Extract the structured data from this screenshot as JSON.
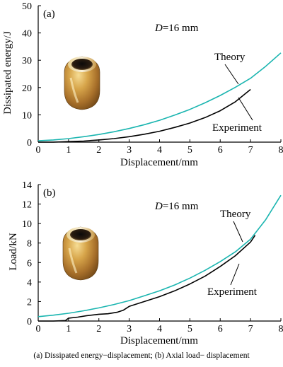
{
  "caption": "(a) Dissipated energy−displacement; (b) Axial load− displacement",
  "colors": {
    "theory": "#1ab5b0",
    "experiment": "#000000",
    "axis": "#000000"
  },
  "chart_data": [
    {
      "type": "line",
      "panel_label": "(a)",
      "annotation_text": "D=16 mm",
      "annotation_var": "D",
      "annotation_rest": "=16 mm",
      "xlabel": "Displacement/mm",
      "ylabel": "Dissipated energy/J",
      "xlim": [
        0,
        8
      ],
      "ylim": [
        0,
        50
      ],
      "xticks": [
        "0",
        "1",
        "2",
        "3",
        "4",
        "5",
        "6",
        "7",
        "8"
      ],
      "yticks": [
        "0",
        "10",
        "20",
        "30",
        "40",
        "50"
      ],
      "series": [
        {
          "name": "Theory",
          "x": [
            0,
            0.5,
            1,
            1.5,
            2,
            2.5,
            3,
            3.5,
            4,
            4.5,
            5,
            5.5,
            6,
            6.5,
            7,
            7.5,
            8
          ],
          "y": [
            0.5,
            0.8,
            1.3,
            2.0,
            2.8,
            3.8,
            5.0,
            6.4,
            8.0,
            9.9,
            12.0,
            14.4,
            17.1,
            20.1,
            23.4,
            27.8,
            32.7
          ]
        },
        {
          "name": "Experiment",
          "x": [
            0,
            0.5,
            1,
            1.5,
            2,
            2.5,
            3,
            3.5,
            4,
            4.5,
            5,
            5.5,
            6,
            6.5,
            7
          ],
          "y": [
            0,
            0,
            0.2,
            0.4,
            0.8,
            1.3,
            2.0,
            2.9,
            4.0,
            5.4,
            7.0,
            9.0,
            11.5,
            14.8,
            19.3
          ]
        }
      ]
    },
    {
      "type": "line",
      "panel_label": "(b)",
      "annotation_text": "D=16 mm",
      "annotation_var": "D",
      "annotation_rest": "=16 mm",
      "xlabel": "Displacement/mm",
      "ylabel": "Load/kN",
      "xlim": [
        0,
        8
      ],
      "ylim": [
        0,
        14
      ],
      "xticks": [
        "0",
        "1",
        "2",
        "3",
        "4",
        "5",
        "6",
        "7",
        "8"
      ],
      "yticks": [
        "0",
        "2",
        "4",
        "6",
        "8",
        "10",
        "12",
        "14"
      ],
      "series": [
        {
          "name": "Theory",
          "x": [
            0,
            0.5,
            1,
            1.5,
            2,
            2.5,
            3,
            3.5,
            4,
            4.5,
            5,
            5.5,
            6,
            6.5,
            7,
            7.5,
            8
          ],
          "y": [
            0.45,
            0.6,
            0.8,
            1.05,
            1.35,
            1.7,
            2.1,
            2.6,
            3.1,
            3.7,
            4.4,
            5.2,
            6.1,
            7.1,
            8.4,
            10.4,
            12.9
          ]
        },
        {
          "name": "Experiment",
          "x": [
            0,
            0.5,
            0.9,
            1.0,
            1.3,
            1.6,
            2.0,
            2.3,
            2.6,
            2.8,
            3.0,
            3.5,
            4.0,
            4.5,
            5.0,
            5.5,
            6.0,
            6.5,
            7.0,
            7.15
          ],
          "y": [
            0,
            0,
            0.05,
            0.3,
            0.4,
            0.55,
            0.7,
            0.75,
            0.9,
            1.1,
            1.5,
            2.0,
            2.5,
            3.1,
            3.8,
            4.6,
            5.6,
            6.7,
            8.1,
            8.8
          ]
        }
      ]
    }
  ]
}
